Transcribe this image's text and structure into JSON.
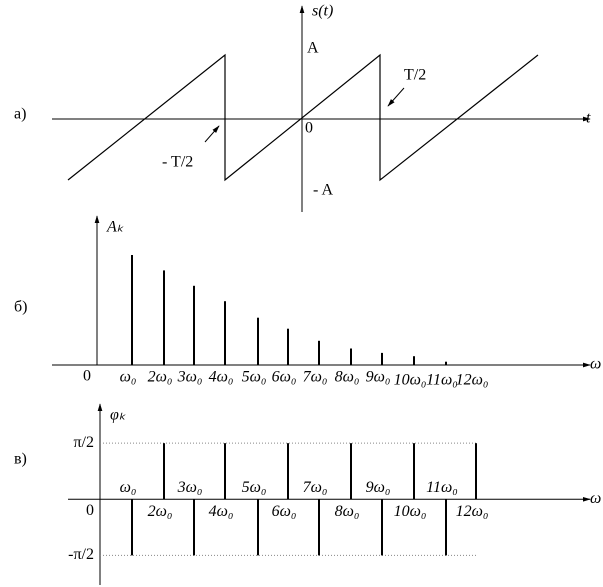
{
  "panel_a": {
    "label": "а)",
    "y_axis_label": "s(t)",
    "x_axis_label": "t",
    "origin": "0",
    "amplitude": "A",
    "neg_amplitude": "- A",
    "half_period": "T/2",
    "neg_half_period": "- T/2"
  },
  "panel_b": {
    "type": "stem",
    "label": "б)",
    "y_axis_label": "Aₖ",
    "x_axis_label": "ω",
    "origin": "0",
    "categories": [
      "ω₀",
      "2ω₀",
      "3ω₀",
      "4ω₀",
      "5ω₀",
      "6ω₀",
      "7ω₀",
      "8ω₀",
      "9ω₀",
      "10ω₀",
      "11ω₀",
      "12ω₀"
    ],
    "values": [
      1,
      0.86,
      0.72,
      0.58,
      0.43,
      0.33,
      0.22,
      0.15,
      0.11,
      0.08,
      0.03,
      null
    ],
    "ylim": [
      0,
      1.3
    ]
  },
  "panel_c": {
    "type": "stem",
    "label": "в)",
    "y_axis_label": "φₖ",
    "x_axis_label": "ω",
    "origin": "0",
    "categories": [
      "ω₀",
      "2ω₀",
      "3ω₀",
      "4ω₀",
      "5ω₀",
      "6ω₀",
      "7ω₀",
      "8ω₀",
      "9ω₀",
      "10ω₀",
      "11ω₀",
      "12ω₀"
    ],
    "values": [
      -1.5708,
      1.5708,
      -1.5708,
      1.5708,
      -1.5708,
      1.5708,
      -1.5708,
      1.5708,
      -1.5708,
      1.5708,
      -1.5708,
      1.5708
    ],
    "ylim": [
      -2.4,
      2.5
    ],
    "yticks": [
      {
        "value": 1.5708,
        "label": "π/2"
      },
      {
        "value": -1.5708,
        "label": "-π/2"
      }
    ]
  }
}
